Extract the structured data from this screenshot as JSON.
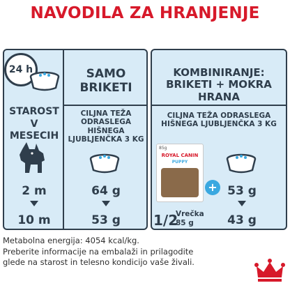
{
  "title": "NAVODILA ZA HRANJENJE",
  "clock_label": "24 h",
  "age_column": {
    "header": "STAROST V MESECIH",
    "ages": [
      "2 m",
      "10 m"
    ]
  },
  "dry_only": {
    "header": "SAMO BRIKETI",
    "subtitle": "CILJNA TEŽA ODRASLEGA HIŠNEGA LJUBLJENČKA 3 KG",
    "amounts": [
      "64 g",
      "53 g"
    ]
  },
  "mixed": {
    "header": "KOMBINIRANJE: BRIKETI + MOKRA HRANA",
    "subtitle": "CILJNA TEŽA ODRASLEGA HIŠNEGA LJUBLJENČKA 3 KG",
    "pouch_fraction": "1/2",
    "pouch_label": "Vrečka",
    "pouch_weight": "85 g",
    "pouch_brand": "ROYAL CANIN",
    "pouch_variant": "PUPPY",
    "pouch_size": "85g",
    "dry_amounts": [
      "53 g",
      "43 g"
    ],
    "plus_symbol": "+"
  },
  "footer": {
    "energy": "Metabolna energija: 4054 kcal/kg.",
    "note": "Preberite informacije na embalaži in prilagodite glede na starost in telesno kondicijo vaše živali."
  },
  "colors": {
    "brand_red": "#d7192a",
    "panel_bg": "#d8ebf7",
    "dark": "#2f3e4c",
    "plus_blue": "#3aa8e0"
  }
}
